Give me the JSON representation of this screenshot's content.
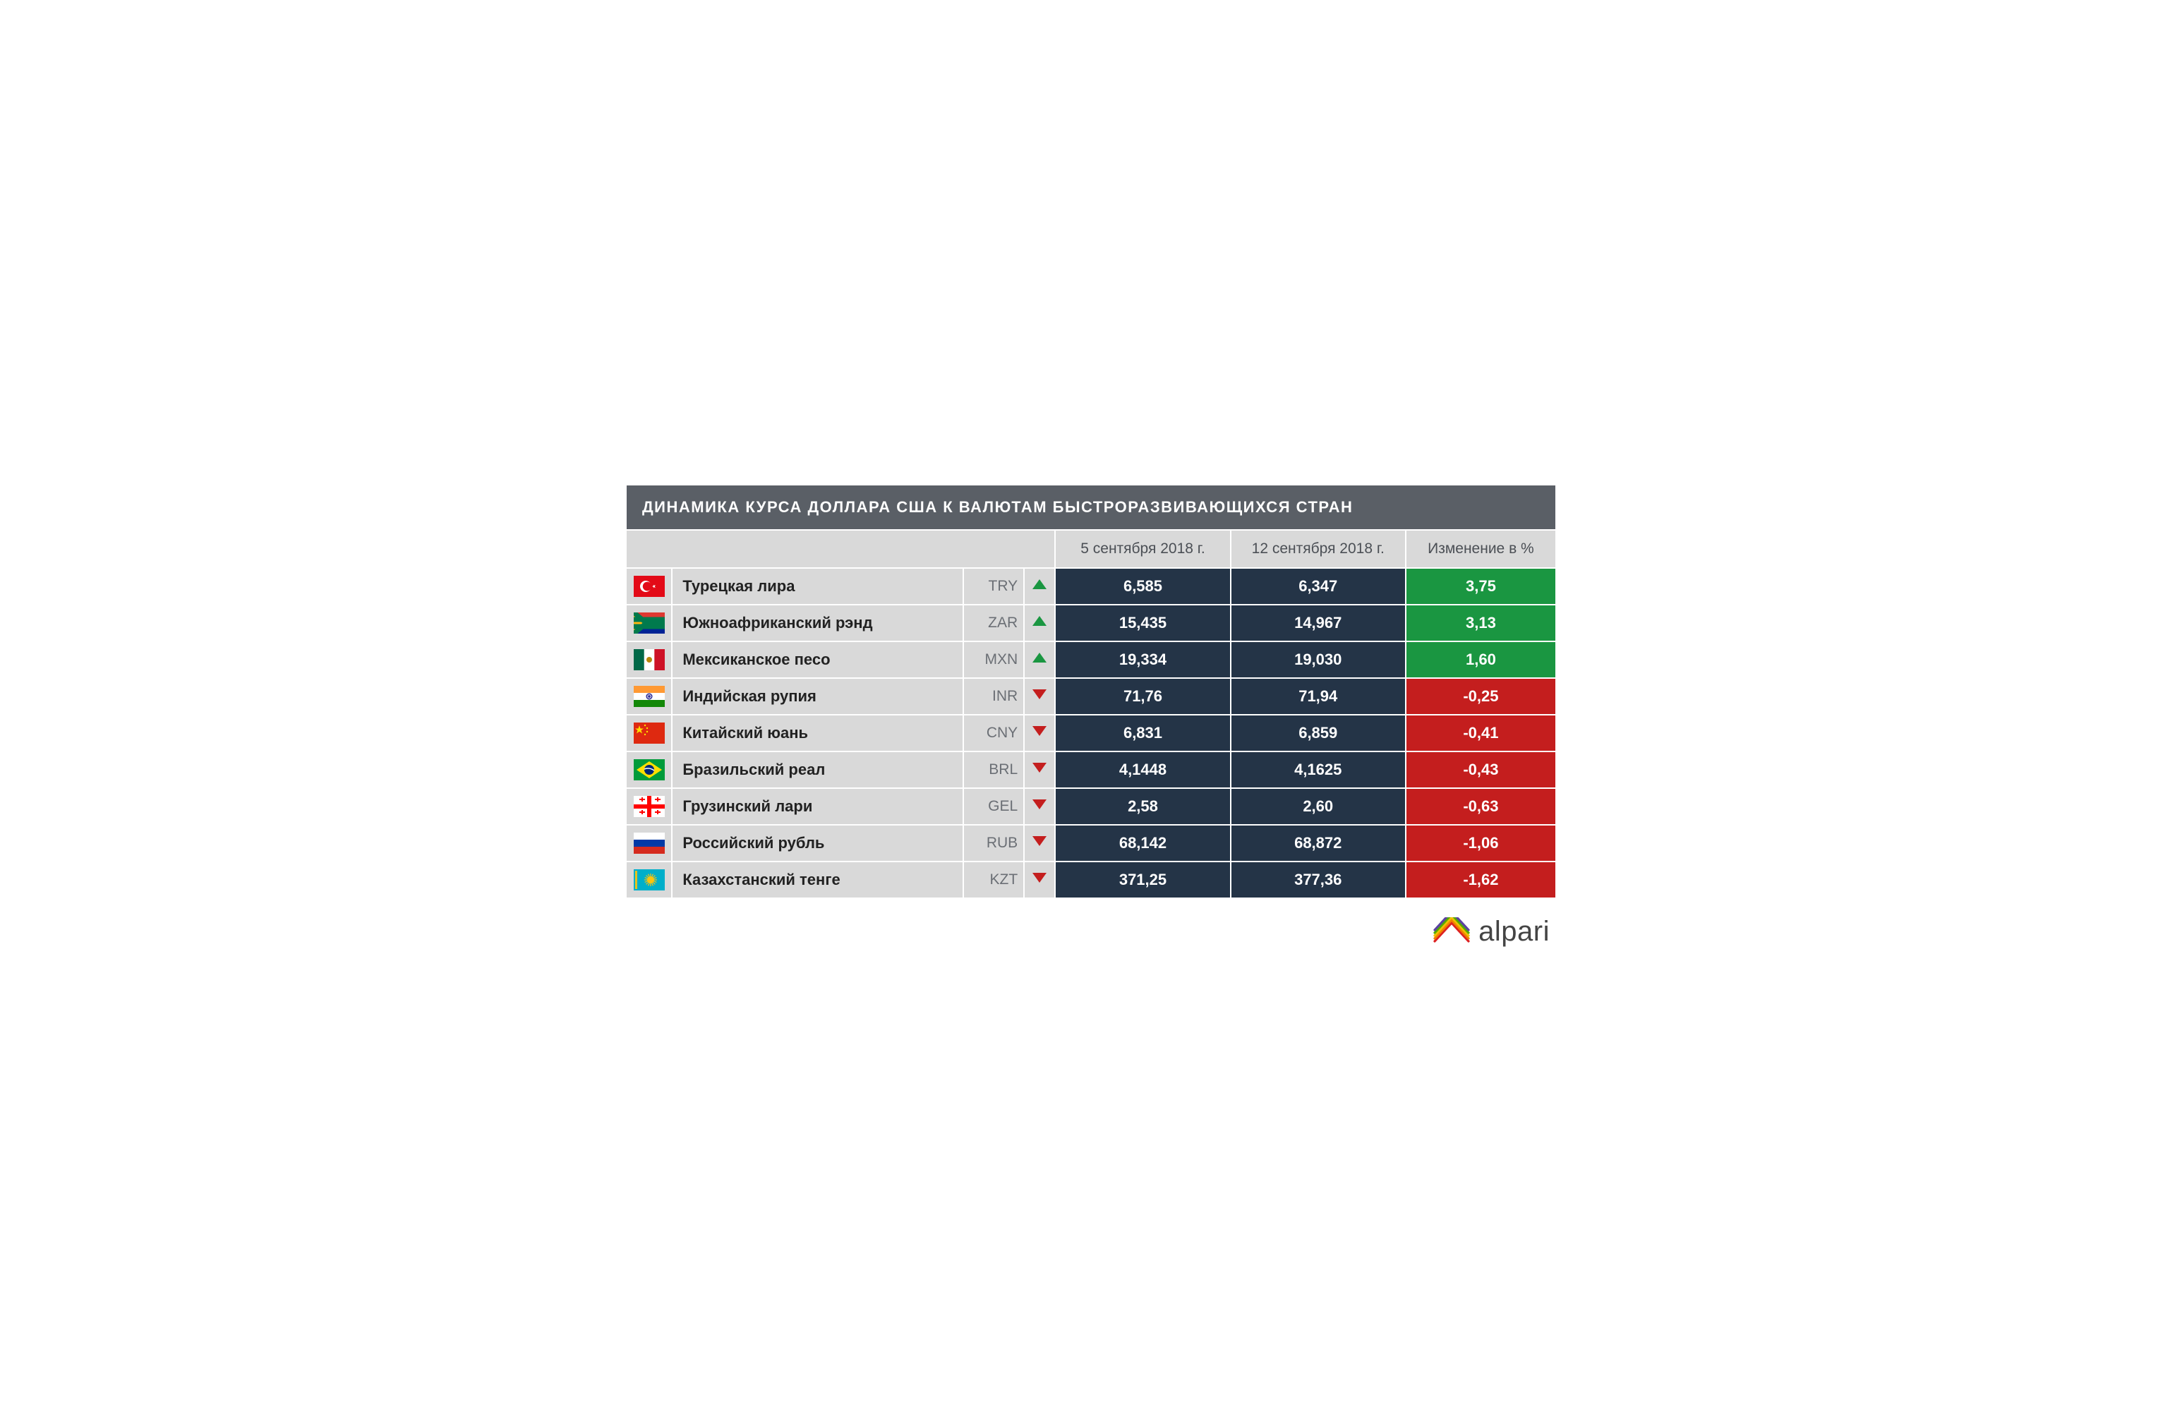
{
  "title": "ДИНАМИКА КУРСА ДОЛЛАРА США К ВАЛЮТАМ БЫСТРОРАЗВИВАЮЩИХСЯ СТРАН",
  "columns": {
    "date1": "5 сентября 2018 г.",
    "date2": "12 сентября 2018 г.",
    "change": "Изменение в %"
  },
  "colors": {
    "title_bg": "#5a5f66",
    "header_bg": "#d9d9d9",
    "label_bg": "#d9d9d9",
    "value_bg": "#243447",
    "up_arrow": "#1a9641",
    "down_arrow": "#c41e1e",
    "change_up_bg": "#1a9641",
    "change_down_bg": "#c41e1e",
    "text_white": "#ffffff",
    "logo_colors": [
      "#dd2020",
      "#f08000",
      "#f0c000",
      "#55aa00",
      "#5b43a0"
    ]
  },
  "brand": "alpari",
  "rows": [
    {
      "flag": "tr",
      "name": "Турецкая лира",
      "code": "TRY",
      "dir": "up",
      "v1": "6,585",
      "v2": "6,347",
      "change": "3,75"
    },
    {
      "flag": "za",
      "name": "Южноафриканский рэнд",
      "code": "ZAR",
      "dir": "up",
      "v1": "15,435",
      "v2": "14,967",
      "change": "3,13"
    },
    {
      "flag": "mx",
      "name": "Мексиканское песо",
      "code": "MXN",
      "dir": "up",
      "v1": "19,334",
      "v2": "19,030",
      "change": "1,60"
    },
    {
      "flag": "in",
      "name": "Индийская рупия",
      "code": "INR",
      "dir": "down",
      "v1": "71,76",
      "v2": "71,94",
      "change": "-0,25"
    },
    {
      "flag": "cn",
      "name": "Китайский юань",
      "code": "CNY",
      "dir": "down",
      "v1": "6,831",
      "v2": "6,859",
      "change": "-0,41"
    },
    {
      "flag": "br",
      "name": "Бразильский реал",
      "code": "BRL",
      "dir": "down",
      "v1": "4,1448",
      "v2": "4,1625",
      "change": "-0,43"
    },
    {
      "flag": "ge",
      "name": "Грузинский лари",
      "code": "GEL",
      "dir": "down",
      "v1": "2,58",
      "v2": "2,60",
      "change": "-0,63"
    },
    {
      "flag": "ru",
      "name": "Российский рубль",
      "code": "RUB",
      "dir": "down",
      "v1": "68,142",
      "v2": "68,872",
      "change": "-1,06"
    },
    {
      "flag": "kz",
      "name": "Казахстанский тенге",
      "code": "KZT",
      "dir": "down",
      "v1": "371,25",
      "v2": "377,36",
      "change": "-1,62"
    }
  ]
}
